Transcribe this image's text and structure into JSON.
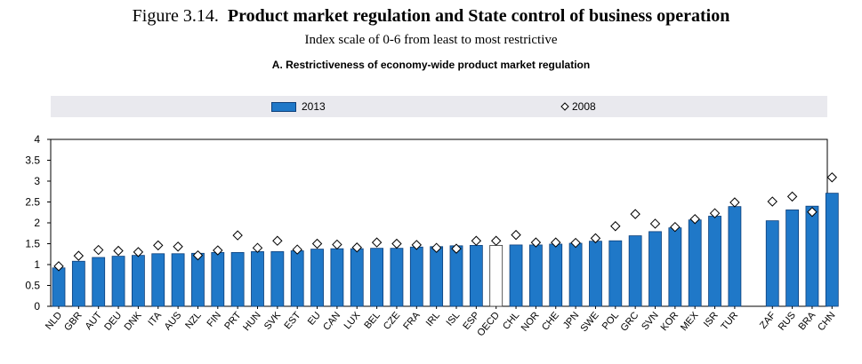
{
  "figure": {
    "label": "Figure 3.14.",
    "title": "Product market regulation and State control of business operation",
    "subtitle": "Index scale of 0-6 from least to most restrictive"
  },
  "chart_data": {
    "type": "bar",
    "title": "A. Restrictiveness of economy-wide product market regulation",
    "xlabel": "",
    "ylabel": "",
    "ylim": [
      0,
      4
    ],
    "yticks": [
      "0",
      "0.5",
      "1",
      "1.5",
      "2",
      "2.5",
      "3",
      "3.5",
      "4"
    ],
    "legend_position": "top",
    "highlight_category": "OECD",
    "colors": {
      "bar": "#1f78c8",
      "bar_edge": "#0d3f7a",
      "highlight": "#ffffff",
      "marker_fill": "#ffffff",
      "marker_edge": "#000000",
      "legend_bg": "#e9e9ee"
    },
    "categories": [
      "NLD",
      "GBR",
      "AUT",
      "DEU",
      "DNK",
      "ITA",
      "AUS",
      "NZL",
      "FIN",
      "PRT",
      "HUN",
      "SVK",
      "EST",
      "EU",
      "CAN",
      "LUX",
      "BEL",
      "CZE",
      "FRA",
      "IRL",
      "ISL",
      "ESP",
      "OECD",
      "CHL",
      "NOR",
      "CHE",
      "JPN",
      "SWE",
      "POL",
      "GRC",
      "SVN",
      "KOR",
      "MEX",
      "ISR",
      "TUR",
      "ZAF",
      "RUS",
      "BRA",
      "CHN"
    ],
    "series": [
      {
        "name": "2013",
        "marker": "bar",
        "values": [
          0.92,
          1.08,
          1.17,
          1.2,
          1.22,
          1.26,
          1.26,
          1.27,
          1.29,
          1.29,
          1.31,
          1.31,
          1.33,
          1.37,
          1.38,
          1.38,
          1.39,
          1.39,
          1.42,
          1.43,
          1.45,
          1.46,
          1.46,
          1.47,
          1.47,
          1.49,
          1.51,
          1.56,
          1.57,
          1.69,
          1.79,
          1.88,
          2.07,
          2.16,
          2.39,
          2.05,
          2.31,
          2.4,
          2.71
        ]
      },
      {
        "name": "2008",
        "marker": "diamond",
        "values": [
          0.96,
          1.21,
          1.35,
          1.33,
          1.3,
          1.46,
          1.43,
          1.22,
          1.34,
          1.7,
          1.4,
          1.57,
          1.36,
          1.5,
          1.48,
          1.41,
          1.53,
          1.5,
          1.47,
          1.4,
          1.38,
          1.57,
          1.57,
          1.71,
          1.53,
          1.53,
          1.52,
          1.63,
          1.92,
          2.21,
          1.98,
          1.9,
          2.09,
          2.23,
          2.49,
          2.51,
          2.63,
          2.26,
          3.09
        ]
      }
    ]
  }
}
